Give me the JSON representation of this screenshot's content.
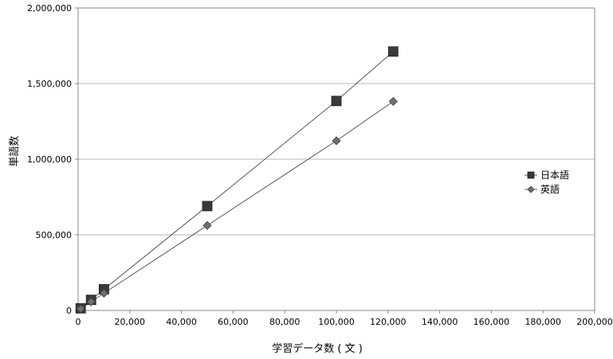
{
  "chart_data": {
    "type": "line",
    "xlabel": "学習データ数 ( 文 )",
    "ylabel": "単語数",
    "xlim": [
      0,
      200000
    ],
    "ylim": [
      0,
      2000000
    ],
    "x_ticks": [
      0,
      20000,
      40000,
      60000,
      80000,
      100000,
      120000,
      140000,
      160000,
      180000,
      200000
    ],
    "x_tick_labels": [
      "0",
      "20,000",
      "40,000",
      "60,000",
      "80,000",
      "100,000",
      "120,000",
      "140,000",
      "160,000",
      "180,000",
      "200,000"
    ],
    "y_ticks": [
      0,
      500000,
      1000000,
      1500000,
      2000000
    ],
    "y_tick_labels": [
      "0",
      "500,000",
      "1,000,000",
      "1,500,000",
      "2,000,000"
    ],
    "grid": "horizontal",
    "legend_position": "right",
    "series": [
      {
        "name": "日本語",
        "marker": "square",
        "color": "#3a3a3a",
        "x": [
          1000,
          5000,
          10000,
          50000,
          100000,
          122000
        ],
        "y": [
          14000,
          70000,
          140000,
          690000,
          1385000,
          1712000
        ]
      },
      {
        "name": "英語",
        "marker": "diamond",
        "color": "#6e6e6e",
        "x": [
          1000,
          5000,
          10000,
          50000,
          100000,
          122000
        ],
        "y": [
          11000,
          57000,
          114000,
          562000,
          1122000,
          1382000
        ]
      }
    ]
  }
}
